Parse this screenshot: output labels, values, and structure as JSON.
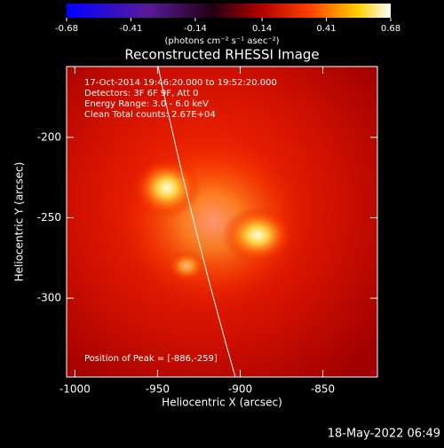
{
  "chart_data": {
    "type": "image",
    "title": "Reconstructed RHESSI Image",
    "xlabel": "Heliocentric X (arcsec)",
    "ylabel": "Heliocentric Y (arcsec)",
    "xlim": [
      -1005,
      -817
    ],
    "xticks": [
      -1000,
      -950,
      -900,
      -850
    ],
    "ylim": [
      -349,
      -156
    ],
    "yticks": [
      -200,
      -250,
      -300
    ],
    "colorbar": {
      "label": "(photons cm⁻² s⁻¹ asec⁻²)",
      "lim": [
        -0.68,
        0.68
      ],
      "ticks": [
        -0.68,
        -0.41,
        -0.14,
        0.14,
        0.41,
        0.68
      ]
    },
    "annotations": [
      "17-Oct-2014 19:46:20.000 to 19:52:20.000",
      "Detectors: 3F 6F 9F, Att 0",
      "Energy Range: 3.0 - 6.0 keV",
      "Clean     Total counts: 2.67E+04"
    ],
    "peak_label": "Position of Peak = [-886,-259]",
    "timestamp": "18-May-2022 06:49"
  }
}
